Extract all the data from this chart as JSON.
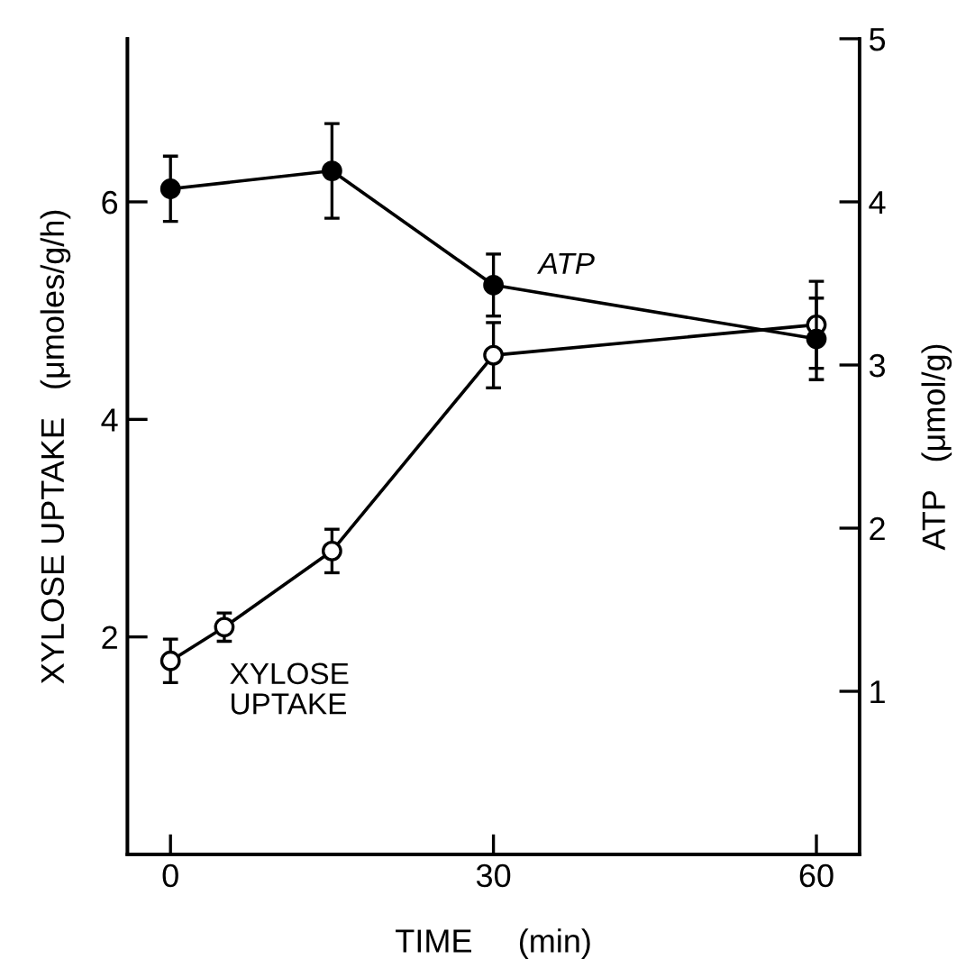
{
  "chart_data": {
    "type": "line",
    "xlabel": "TIME     (min)",
    "ylabel": "XYLOSE UPTAKE   (μmoles/g/h)",
    "y2label": "ATP   (μmol/g)",
    "xlim": [
      -4,
      64
    ],
    "xticks": [
      0,
      30,
      60
    ],
    "ylim": [
      0,
      7.5
    ],
    "yticks": [
      2,
      4,
      6
    ],
    "y2lim": [
      0,
      5
    ],
    "y2ticks": [
      1,
      2,
      3,
      4,
      5
    ],
    "marker": "circle",
    "line_style": "solid",
    "grid": false,
    "legend": false,
    "series": [
      {
        "name": "ATP",
        "axis": "y2",
        "color": "#000000",
        "x": [
          0,
          15,
          30,
          60
        ],
        "values": [
          4.08,
          4.19,
          3.49,
          3.16
        ],
        "errors": [
          0.2,
          0.29,
          0.19,
          0.25
        ]
      },
      {
        "name": "XYLOSE\nUPTAKE",
        "axis": "y",
        "color": "#000000",
        "x": [
          0,
          5,
          15,
          30,
          60
        ],
        "values": [
          1.78,
          2.09,
          2.79,
          4.59,
          4.87
        ],
        "errors": [
          0.2,
          0.13,
          0.2,
          0.3,
          0.4
        ]
      }
    ]
  }
}
